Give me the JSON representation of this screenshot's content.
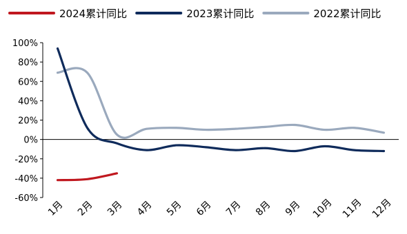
{
  "chart_data": {
    "type": "line",
    "categories": [
      "1月",
      "2月",
      "3月",
      "4月",
      "5月",
      "6月",
      "7月",
      "8月",
      "9月",
      "10月",
      "11月",
      "12月"
    ],
    "y_ticks": [
      "100%",
      "80%",
      "60%",
      "40%",
      "20%",
      "0%",
      "-20%",
      "-40%",
      "-60%"
    ],
    "ylim": [
      -60,
      100
    ],
    "y_unit": "%",
    "grid": false,
    "legend_position": "top",
    "series": [
      {
        "name": "2024累计同比",
        "color": "#C0181F",
        "values": [
          -42,
          -41,
          -35,
          null,
          null,
          null,
          null,
          null,
          null,
          null,
          null,
          null
        ]
      },
      {
        "name": "2023累计同比",
        "color": "#0F2B5B",
        "values": [
          94,
          12,
          -4,
          -11,
          -6,
          -8,
          -11,
          -9,
          -12,
          -7,
          -11,
          -12
        ]
      },
      {
        "name": "2022累计同比",
        "color": "#9AA9BD",
        "values": [
          69,
          69,
          5,
          11,
          12,
          10,
          11,
          13,
          15,
          10,
          12,
          7
        ]
      }
    ]
  }
}
